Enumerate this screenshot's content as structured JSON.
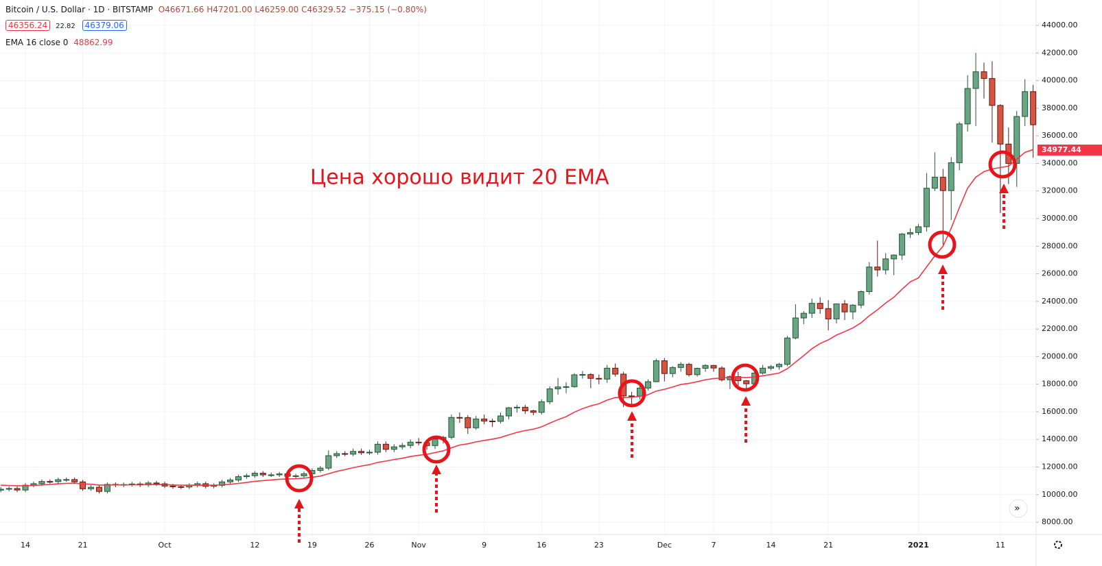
{
  "chart_data": {
    "type": "candlestick",
    "title": "Bitcoin / U.S. Dollar · 1D · BITSTAMP",
    "ohlc_summary": "O46671.66 H47201.00 L46259.00 C46329.52 −375.15 (−0.80%)",
    "bid": "46356.24",
    "spread": "22.82",
    "ask": "46379.06",
    "annotation": "Цена хорошо видит 20 EMA",
    "last_price_label": "34977.44",
    "up_color": "#6ba583",
    "down_color": "#d75442",
    "categories": [
      null,
      null,
      null,
      "14",
      null,
      null,
      null,
      null,
      null,
      null,
      "21",
      null,
      null,
      null,
      null,
      null,
      null,
      null,
      null,
      null,
      "Oct",
      null,
      null,
      null,
      null,
      null,
      null,
      null,
      null,
      null,
      null,
      "12",
      null,
      null,
      null,
      null,
      null,
      null,
      "19",
      null,
      null,
      null,
      null,
      null,
      null,
      "26",
      null,
      null,
      null,
      null,
      null,
      "Nov",
      null,
      null,
      null,
      null,
      null,
      null,
      null,
      "9",
      null,
      null,
      null,
      null,
      null,
      null,
      "16",
      null,
      null,
      null,
      null,
      null,
      null,
      "23",
      null,
      null,
      null,
      null,
      null,
      null,
      null,
      "Dec",
      null,
      null,
      null,
      null,
      null,
      "7",
      null,
      null,
      null,
      null,
      null,
      null,
      "14",
      null,
      null,
      null,
      null,
      null,
      null,
      "21",
      null,
      null,
      null,
      null,
      null,
      null,
      null,
      null,
      null,
      null,
      "2021",
      null,
      null,
      null,
      null,
      null,
      null,
      null,
      null,
      null,
      "11",
      null,
      null,
      null,
      null
    ],
    "open": [
      10320,
      10390,
      10440,
      10330,
      10680,
      10790,
      10950,
      10940,
      11080,
      11090,
      10920,
      10420,
      10530,
      10230,
      10740,
      10690,
      10730,
      10770,
      10700,
      10840,
      10780,
      10620,
      10570,
      10550,
      10670,
      10790,
      10600,
      10670,
      10920,
      11060,
      11300,
      11370,
      11550,
      11430,
      11430,
      11500,
      11330,
      11360,
      11510,
      11750,
      11920,
      12820,
      12970,
      12930,
      13130,
      13030,
      13070,
      13650,
      13280,
      13460,
      13560,
      13800,
      13760,
      13550,
      14020,
      14150,
      15590,
      15580,
      14840,
      15480,
      15330,
      15310,
      15700,
      16290,
      16330,
      16070,
      15960,
      16730,
      17660,
      17800,
      17820,
      18680,
      18700,
      18420,
      18370,
      19160,
      18730,
      17150,
      17140,
      17720,
      18180,
      19700,
      18770,
      19210,
      19440,
      18690,
      19150,
      19360,
      19170,
      18320,
      18550,
      18250,
      18030,
      18810,
      19160,
      19270,
      19440,
      21350,
      22800,
      23140,
      23860,
      23480,
      22730,
      23820,
      23240,
      23730,
      24710,
      26490,
      26280,
      27080,
      27360,
      28880,
      28990,
      29410,
      32200,
      33000,
      32030,
      34050,
      36860,
      39430,
      40640,
      40150,
      38200,
      35400,
      34000,
      37400,
      39200
    ],
    "high": [
      10540,
      10590,
      10590,
      10830,
      10940,
      11100,
      11100,
      11230,
      11240,
      11240,
      11070,
      10680,
      10680,
      10890,
      10890,
      10880,
      10920,
      10920,
      10990,
      10990,
      10930,
      10770,
      10720,
      10820,
      10940,
      10940,
      10820,
      11070,
      11210,
      11450,
      11520,
      11700,
      11700,
      11580,
      11650,
      11650,
      11510,
      11660,
      11900,
      12070,
      13200,
      13150,
      13150,
      13330,
      13330,
      13250,
      13850,
      13850,
      13650,
      13750,
      14000,
      14100,
      13900,
      14200,
      14250,
      15800,
      15950,
      15750,
      15700,
      15800,
      15500,
      15950,
      16350,
      16500,
      16500,
      16150,
      16900,
      17850,
      18450,
      18150,
      18800,
      18950,
      18800,
      18700,
      19400,
      19500,
      18900,
      17450,
      17900,
      18350,
      19850,
      19900,
      19300,
      19600,
      19550,
      19200,
      19450,
      19400,
      19300,
      18650,
      18900,
      18300,
      18950,
      19400,
      19400,
      19550,
      21500,
      23800,
      23300,
      24200,
      24300,
      24100,
      23850,
      24100,
      23800,
      24800,
      26850,
      28400,
      27500,
      27400,
      28950,
      29300,
      29600,
      33300,
      34800,
      33600,
      34450,
      37000,
      40400,
      42000,
      41300,
      41400,
      38300,
      36600,
      37800,
      40100,
      39700
    ],
    "low": [
      10170,
      10240,
      10180,
      10180,
      10530,
      10640,
      10790,
      10790,
      10930,
      10770,
      10270,
      10270,
      10080,
      10080,
      10540,
      10540,
      10580,
      10550,
      10550,
      10630,
      10470,
      10420,
      10400,
      10400,
      10520,
      10450,
      10450,
      10520,
      10770,
      10910,
      11150,
      11220,
      11280,
      11280,
      11280,
      11180,
      11180,
      11210,
      11360,
      11600,
      11770,
      12650,
      12780,
      12780,
      12880,
      12880,
      12900,
      13080,
      13080,
      13260,
      13360,
      13560,
      13250,
      13300,
      13700,
      14000,
      15200,
      14400,
      14700,
      15100,
      14900,
      15150,
      15450,
      15950,
      15850,
      15750,
      15800,
      16550,
      17250,
      17350,
      17750,
      18400,
      17700,
      18000,
      18100,
      18550,
      16350,
      16500,
      16900,
      17550,
      18150,
      18200,
      18500,
      18900,
      18550,
      18550,
      18900,
      18900,
      18200,
      17650,
      17900,
      17600,
      17900,
      18700,
      19000,
      19050,
      19300,
      21250,
      22350,
      22800,
      23100,
      21900,
      22400,
      22650,
      22700,
      23500,
      24500,
      25800,
      25950,
      25900,
      27000,
      28600,
      28800,
      29050,
      32000,
      28100,
      29900,
      33500,
      36300,
      36700,
      38700,
      35500,
      30400,
      32500,
      32300,
      36700,
      34400
    ],
    "close": [
      10390,
      10440,
      10330,
      10680,
      10790,
      10950,
      10940,
      11080,
      11090,
      10920,
      10420,
      10530,
      10230,
      10740,
      10690,
      10730,
      10770,
      10700,
      10840,
      10780,
      10620,
      10570,
      10550,
      10670,
      10790,
      10600,
      10670,
      10920,
      11060,
      11300,
      11370,
      11550,
      11430,
      11430,
      11500,
      11330,
      11360,
      11510,
      11750,
      11920,
      12820,
      12970,
      12930,
      13130,
      13030,
      13070,
      13650,
      13280,
      13460,
      13560,
      13800,
      13760,
      13550,
      14020,
      14150,
      15590,
      15580,
      14840,
      15480,
      15330,
      15310,
      15700,
      16290,
      16330,
      16070,
      15960,
      16730,
      17660,
      17800,
      17820,
      18680,
      18700,
      18420,
      18370,
      19160,
      18730,
      17150,
      17140,
      17720,
      18180,
      19700,
      18770,
      19210,
      19440,
      18690,
      19150,
      19360,
      19170,
      18320,
      18550,
      18250,
      18030,
      18810,
      19160,
      19270,
      19440,
      21350,
      22800,
      23140,
      23860,
      23480,
      22730,
      23820,
      23240,
      23730,
      24710,
      26490,
      26280,
      27080,
      27360,
      28880,
      28990,
      29410,
      32200,
      33000,
      32030,
      34050,
      36860,
      39430,
      40640,
      40150,
      38200,
      35400,
      34000,
      37400,
      39200,
      36800
    ],
    "ema": {
      "name": "EMA 16 close 0",
      "value_label": "48862.99",
      "color": "#f23645",
      "values": [
        10680,
        10660,
        10640,
        10640,
        10660,
        10700,
        10730,
        10780,
        10810,
        10820,
        10780,
        10750,
        10690,
        10700,
        10700,
        10700,
        10710,
        10710,
        10730,
        10730,
        10720,
        10700,
        10680,
        10680,
        10690,
        10680,
        10680,
        10710,
        10750,
        10810,
        10880,
        10960,
        11010,
        11060,
        11110,
        11130,
        11150,
        11190,
        11260,
        11340,
        11510,
        11680,
        11810,
        11950,
        12070,
        12170,
        12330,
        12430,
        12540,
        12630,
        12760,
        12850,
        12920,
        13040,
        13170,
        13390,
        13590,
        13680,
        13820,
        13920,
        14020,
        14140,
        14330,
        14510,
        14640,
        14740,
        14910,
        15180,
        15430,
        15650,
        15970,
        16230,
        16430,
        16580,
        16850,
        17030,
        17040,
        17050,
        17120,
        17240,
        17500,
        17630,
        17800,
        17980,
        18060,
        18180,
        18320,
        18410,
        18450,
        18500,
        18500,
        18480,
        18520,
        18610,
        18700,
        18810,
        19120,
        19600,
        20070,
        20570,
        20950,
        21210,
        21560,
        21810,
        22080,
        22450,
        22960,
        23390,
        23880,
        24300,
        24880,
        25420,
        25700,
        26500,
        27300,
        28000,
        29300,
        30800,
        32200,
        33000,
        33400,
        33600,
        33700,
        33800,
        34300,
        34800,
        35000
      ]
    },
    "ylim": [
      7110,
      45840
    ],
    "yticks": [
      {
        "value": 8000,
        "label": "8000.00"
      },
      {
        "value": 10000,
        "label": "10000.00"
      },
      {
        "value": 12000,
        "label": "12000.00"
      },
      {
        "value": 14000,
        "label": "14000.00"
      },
      {
        "value": 16000,
        "label": "16000.00"
      },
      {
        "value": 18000,
        "label": "18000.00"
      },
      {
        "value": 20000,
        "label": "20000.00"
      },
      {
        "value": 22000,
        "label": "22000.00"
      },
      {
        "value": 24000,
        "label": "24000.00"
      },
      {
        "value": 26000,
        "label": "26000.00"
      },
      {
        "value": 28000,
        "label": "28000.00"
      },
      {
        "value": 30000,
        "label": "30000.00"
      },
      {
        "value": 32000,
        "label": "32000.00"
      },
      {
        "value": 34000,
        "label": "34000.00"
      },
      {
        "value": 36000,
        "label": "36000.00"
      },
      {
        "value": 38000,
        "label": "38000.00"
      },
      {
        "value": 40000,
        "label": "40000.00"
      },
      {
        "value": 42000,
        "label": "42000.00"
      },
      {
        "value": 44000,
        "label": "44000.00"
      }
    ],
    "grid": true
  }
}
